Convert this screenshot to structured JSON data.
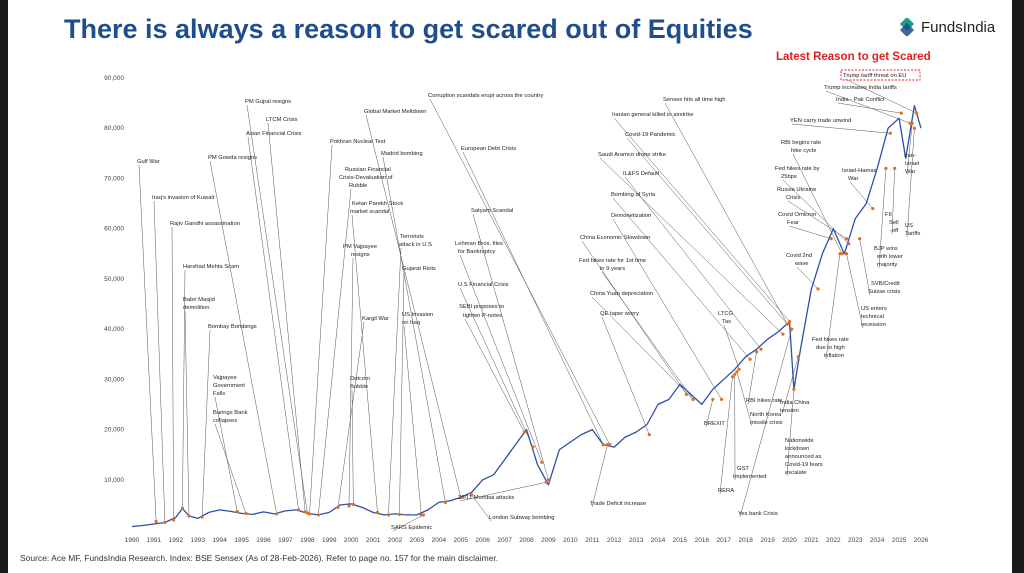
{
  "title": "There is always a reason to get scared out of Equities",
  "brand": {
    "name": "FundsIndia",
    "logo_icon": "fundsindia-logo-icon",
    "logo_color": "#1e9e86"
  },
  "latest_reason_label": "Latest Reason to get Scared",
  "source": "Source: Ace MF, FundsIndia Research. Index: BSE Sensex (As of 28-Feb-2026). Refer to page no. 157 for the main disclaimer.",
  "colors": {
    "title": "#1f4e8c",
    "line": "#2f4fa8",
    "highlight": "#e07020",
    "latest_box": "#e02020"
  },
  "chart_data": {
    "type": "line",
    "x_tick_labels": [
      "1990",
      "1991",
      "1992",
      "1993",
      "1994",
      "1995",
      "1996",
      "1997",
      "1998",
      "1999",
      "2000",
      "2001",
      "2002",
      "2003",
      "2004",
      "2005",
      "2006",
      "2007",
      "2008",
      "2009",
      "2010",
      "2011",
      "2012",
      "2013",
      "2014",
      "2015",
      "2016",
      "2017",
      "2018",
      "2019",
      "2020",
      "2021",
      "2022",
      "2023",
      "2024",
      "2025",
      "2026"
    ],
    "y_tick_labels": [
      "10,000",
      "20,000",
      "30,000",
      "40,000",
      "50,000",
      "60,000",
      "70,000",
      "80,000",
      "90,000"
    ],
    "xlim": [
      1990,
      2026
    ],
    "ylim": [
      0,
      90000
    ],
    "grid": false,
    "series": [
      {
        "x": [
          1990,
          1990.5,
          1991,
          1991.5,
          1992,
          1992.3,
          1992.6,
          1993,
          1993.5,
          1994,
          1994.5,
          1995,
          1995.5,
          1996,
          1996.5,
          1997,
          1997.5,
          1998,
          1998.5,
          1999,
          1999.5,
          2000,
          2000.5,
          2001,
          2001.5,
          2002,
          2002.5,
          2003,
          2003.5,
          2004,
          2004.5,
          2005,
          2005.5,
          2006,
          2006.5,
          2007,
          2007.5,
          2008,
          2008.5,
          2009,
          2009.5,
          2010,
          2010.5,
          2011,
          2011.5,
          2012,
          2012.5,
          2013,
          2013.5,
          2014,
          2014.5,
          2015,
          2015.5,
          2016,
          2016.5,
          2017,
          2017.5,
          2018,
          2018.5,
          2019,
          2019.5,
          2020,
          2020.2,
          2020.5,
          2021,
          2021.5,
          2022,
          2022.5,
          2023,
          2023.5,
          2024,
          2024.5,
          2025,
          2025.3,
          2025.7,
          2026
        ],
        "y": [
          700,
          900,
          1200,
          1500,
          2500,
          4300,
          2800,
          2300,
          3500,
          4000,
          3700,
          3300,
          3100,
          3600,
          3200,
          3800,
          4000,
          3300,
          3000,
          3500,
          5000,
          5200,
          4500,
          3500,
          3000,
          3200,
          3000,
          3000,
          4000,
          5500,
          5800,
          6500,
          7500,
          10000,
          11000,
          14000,
          17000,
          20000,
          13000,
          9000,
          16000,
          17500,
          19000,
          20000,
          17000,
          16500,
          18500,
          19500,
          21000,
          25000,
          26000,
          29000,
          27000,
          25000,
          28000,
          30000,
          32000,
          34500,
          36000,
          38000,
          39500,
          41500,
          28000,
          36000,
          48000,
          55000,
          60000,
          55000,
          62000,
          65000,
          72000,
          80000,
          82000,
          74000,
          84500,
          80000
        ]
      }
    ],
    "annotations": [
      "Gulf War",
      "Iraq's invasion of Kuwait",
      "Rajiv Gandhi assassination",
      "Harshad Mehta Scam",
      "Babri Masjid",
      "demolition",
      "Bombay Bombings",
      "Vajpayee",
      "Government",
      "Falls",
      "Barings Bank",
      "collapses",
      "PM Gowda resigns",
      "Asian Financial Crisis",
      "LTCM Crisis",
      "PM Gujral resigns",
      "Pokhran Nuclear Test",
      "Russian Financial",
      "Crisis-Devaluation of",
      "Rubble",
      "Ketan Parekh Stock",
      "market scandal",
      "PM Vajpayee",
      "resigns",
      "Kargil War",
      "Dotcom",
      "Bubble",
      "Terrorists",
      "attack in U.S",
      "Gujarat Riots",
      "US Invasion",
      "on Iraq",
      "Madrid bombing",
      "Global Market Meltdown",
      "SARS Epidemic",
      "London Subway bombing",
      "26/11 Mumbai attacks",
      "Corruption scandals erupt across the country",
      "European Debt Crisis",
      "Satyam Scandal",
      "Lehman Bros. files",
      "for Bankruptcy",
      "U.S Financial Crisis",
      "SEBI proposes to",
      "tighten P-notes",
      "Trade Deficit increase",
      "China Economic Slowdown",
      "Fed hikes rate for 1st time",
      "in 9 years",
      "China Yuan depreciation",
      "QE taper worry",
      "Demonetization",
      "Bombing of Syria",
      "IL&FS Default",
      "Saudi Aramco drone strike",
      "Covid-19 Pandemic",
      "Iranian general killed in airstrike",
      "Sensex hits all time high",
      "BREXIT",
      "LTCG",
      "Tax",
      "RBI hikes rate",
      "North Korea",
      "missile crisis",
      "GST",
      "Implemented",
      "RERA",
      "Yes bank Crisis",
      "Nationwide",
      "lockdown",
      "announced as",
      "Covid-19 fears",
      "escalate",
      "India China",
      "tension",
      "Fed hikes rate",
      "due to high",
      "inflation",
      "Covid 2nd",
      "wave",
      "RBI begins rate",
      "hike cycle",
      "Fed hikes rate by",
      "25bps",
      "Russia Ukraine",
      "Crisis",
      "Covid Omicron",
      "Fear",
      "Israel-Hamas",
      "War",
      "YEN carry trade unwind",
      "India - Pak Conflict",
      "Trump increases India tariffs",
      "Trump tariff threat on EU",
      "Iran-",
      "Israel",
      "War",
      "FII",
      "Sell",
      "-off",
      "US",
      "Tariffs",
      "BJP wins",
      "with lower",
      "majority",
      "SVB/Credit",
      "Suisse crisis",
      "US enters",
      "technical",
      "recession"
    ]
  }
}
